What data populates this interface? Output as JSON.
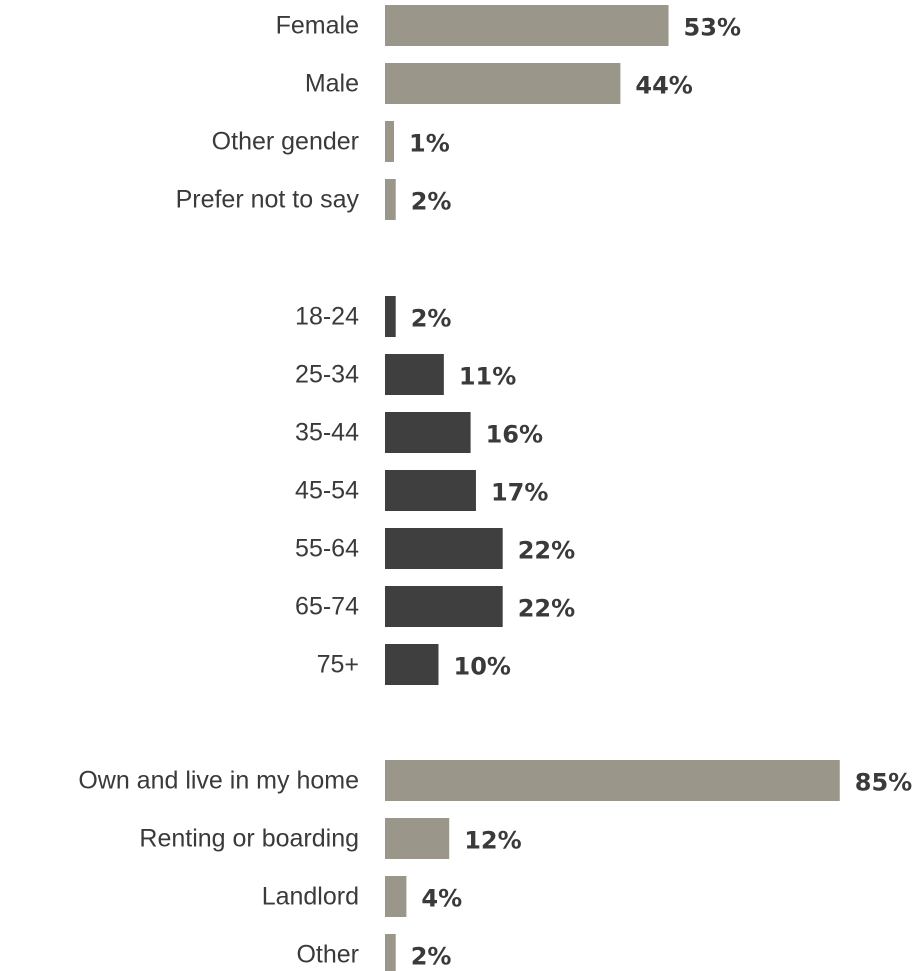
{
  "chart_data": [
    {
      "type": "bar",
      "orientation": "horizontal",
      "color": "#9a978a",
      "categories": [
        "Female",
        "Male",
        "Other gender",
        "Prefer not to say"
      ],
      "values": [
        53,
        44,
        1,
        2
      ],
      "value_suffix": "%",
      "grid": false
    },
    {
      "type": "bar",
      "orientation": "horizontal",
      "color": "#3f3f3f",
      "categories": [
        "18-24",
        "25-34",
        "35-44",
        "45-54",
        "55-64",
        "65-74",
        "75+"
      ],
      "values": [
        2,
        11,
        16,
        17,
        22,
        22,
        10
      ],
      "value_suffix": "%",
      "grid": false
    },
    {
      "type": "bar",
      "orientation": "horizontal",
      "color": "#9a978a",
      "categories": [
        "Own and live in my home",
        "Renting or boarding",
        "Landlord",
        "Other"
      ],
      "values": [
        85,
        12,
        4,
        2
      ],
      "value_suffix": "%",
      "grid": false
    }
  ]
}
